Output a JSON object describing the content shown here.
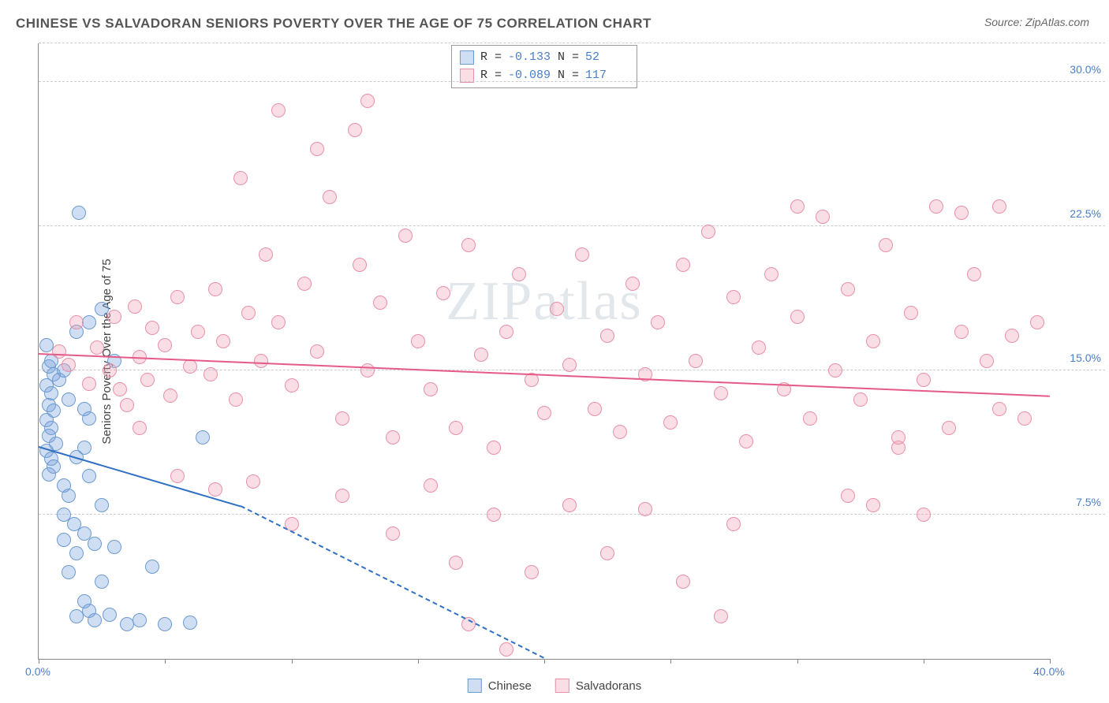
{
  "title": "CHINESE VS SALVADORAN SENIORS POVERTY OVER THE AGE OF 75 CORRELATION CHART",
  "source": "Source: ZipAtlas.com",
  "y_axis_label": "Seniors Poverty Over the Age of 75",
  "watermark": "ZIPatlas",
  "chart": {
    "type": "scatter",
    "xlim": [
      0,
      40
    ],
    "ylim": [
      0,
      32
    ],
    "x_ticks": [
      0,
      5,
      10,
      15,
      20,
      25,
      30,
      35,
      40
    ],
    "x_tick_labels": {
      "0": "0.0%",
      "40": "40.0%"
    },
    "y_ticks": [
      7.5,
      15.0,
      22.5,
      30.0
    ],
    "y_tick_labels": [
      "7.5%",
      "15.0%",
      "22.5%",
      "30.0%"
    ],
    "background_color": "#ffffff",
    "grid_color": "#cccccc",
    "marker_radius": 9,
    "marker_border_width": 1.5
  },
  "series": [
    {
      "name": "Chinese",
      "fill": "rgba(120,160,220,0.35)",
      "stroke": "#6b9bd1",
      "line_color": "#2f6fc4",
      "R": "-0.133",
      "N": "52",
      "trend": {
        "x1": 0,
        "y1": 11.0,
        "x2_solid": 8,
        "y2_solid": 7.9,
        "x2_dash": 20,
        "y2_dash": 0
      },
      "points": [
        [
          0.3,
          16.3
        ],
        [
          0.4,
          15.2
        ],
        [
          0.5,
          15.5
        ],
        [
          0.6,
          14.8
        ],
        [
          0.3,
          14.2
        ],
        [
          0.5,
          13.8
        ],
        [
          0.4,
          13.2
        ],
        [
          0.6,
          12.9
        ],
        [
          0.3,
          12.4
        ],
        [
          0.5,
          12.0
        ],
        [
          0.4,
          11.6
        ],
        [
          0.7,
          11.2
        ],
        [
          0.3,
          10.8
        ],
        [
          0.5,
          10.4
        ],
        [
          0.6,
          10.0
        ],
        [
          0.4,
          9.6
        ],
        [
          0.8,
          14.5
        ],
        [
          1.0,
          15.0
        ],
        [
          1.2,
          13.5
        ],
        [
          1.5,
          17.0
        ],
        [
          1.6,
          23.2
        ],
        [
          1.8,
          11.0
        ],
        [
          1.0,
          9.0
        ],
        [
          1.2,
          8.5
        ],
        [
          1.5,
          10.5
        ],
        [
          1.0,
          7.5
        ],
        [
          1.4,
          7.0
        ],
        [
          1.8,
          6.5
        ],
        [
          1.0,
          6.2
        ],
        [
          1.5,
          5.5
        ],
        [
          2.0,
          9.5
        ],
        [
          2.2,
          6.0
        ],
        [
          2.5,
          8.0
        ],
        [
          1.2,
          4.5
        ],
        [
          1.8,
          3.0
        ],
        [
          2.0,
          2.5
        ],
        [
          2.5,
          4.0
        ],
        [
          3.0,
          5.8
        ],
        [
          1.5,
          2.2
        ],
        [
          2.2,
          2.0
        ],
        [
          2.8,
          2.3
        ],
        [
          3.5,
          1.8
        ],
        [
          4.0,
          2.0
        ],
        [
          4.5,
          4.8
        ],
        [
          5.0,
          1.8
        ],
        [
          2.0,
          17.5
        ],
        [
          2.5,
          18.2
        ],
        [
          6.0,
          1.9
        ],
        [
          6.5,
          11.5
        ],
        [
          2.0,
          12.5
        ],
        [
          1.8,
          13.0
        ],
        [
          3.0,
          15.5
        ]
      ]
    },
    {
      "name": "Salvadorans",
      "fill": "rgba(240,160,180,0.35)",
      "stroke": "#e890a8",
      "line_color": "#e65a8a",
      "R": "-0.089",
      "N": "117",
      "trend": {
        "x1": 0,
        "y1": 15.8,
        "x2_solid": 40,
        "y2_solid": 13.6,
        "x2_dash": 40,
        "y2_dash": 13.6
      },
      "points": [
        [
          0.8,
          16.0
        ],
        [
          1.2,
          15.3
        ],
        [
          1.5,
          17.5
        ],
        [
          2.0,
          14.3
        ],
        [
          2.3,
          16.2
        ],
        [
          2.8,
          15.0
        ],
        [
          3.0,
          17.8
        ],
        [
          3.2,
          14.0
        ],
        [
          3.5,
          13.2
        ],
        [
          3.8,
          18.3
        ],
        [
          4.0,
          15.7
        ],
        [
          4.3,
          14.5
        ],
        [
          4.5,
          17.2
        ],
        [
          5.0,
          16.3
        ],
        [
          5.2,
          13.7
        ],
        [
          5.5,
          18.8
        ],
        [
          6.0,
          15.2
        ],
        [
          6.3,
          17.0
        ],
        [
          6.8,
          14.8
        ],
        [
          7.0,
          19.2
        ],
        [
          7.3,
          16.5
        ],
        [
          7.8,
          13.5
        ],
        [
          8.0,
          25.0
        ],
        [
          8.3,
          18.0
        ],
        [
          8.8,
          15.5
        ],
        [
          9.0,
          21.0
        ],
        [
          9.5,
          17.5
        ],
        [
          10.0,
          14.2
        ],
        [
          10.5,
          19.5
        ],
        [
          11.0,
          16.0
        ],
        [
          11.5,
          24.0
        ],
        [
          12.0,
          12.5
        ],
        [
          12.5,
          27.5
        ],
        [
          12.7,
          20.5
        ],
        [
          13.0,
          15.0
        ],
        [
          13.5,
          18.5
        ],
        [
          14.0,
          11.5
        ],
        [
          14.5,
          22.0
        ],
        [
          15.0,
          16.5
        ],
        [
          15.5,
          14.0
        ],
        [
          16.0,
          19.0
        ],
        [
          16.5,
          12.0
        ],
        [
          17.0,
          21.5
        ],
        [
          17.5,
          15.8
        ],
        [
          18.0,
          11.0
        ],
        [
          18.5,
          17.0
        ],
        [
          19.0,
          20.0
        ],
        [
          19.5,
          14.5
        ],
        [
          20.0,
          12.8
        ],
        [
          20.5,
          18.2
        ],
        [
          21.0,
          15.3
        ],
        [
          21.5,
          21.0
        ],
        [
          22.0,
          13.0
        ],
        [
          22.5,
          16.8
        ],
        [
          23.0,
          11.8
        ],
        [
          23.5,
          19.5
        ],
        [
          24.0,
          14.8
        ],
        [
          24.5,
          17.5
        ],
        [
          25.0,
          12.3
        ],
        [
          25.5,
          20.5
        ],
        [
          26.0,
          15.5
        ],
        [
          26.5,
          22.2
        ],
        [
          27.0,
          13.8
        ],
        [
          27.5,
          18.8
        ],
        [
          28.0,
          11.3
        ],
        [
          28.5,
          16.2
        ],
        [
          29.0,
          20.0
        ],
        [
          29.5,
          14.0
        ],
        [
          30.0,
          17.8
        ],
        [
          30.5,
          12.5
        ],
        [
          31.0,
          23.0
        ],
        [
          31.5,
          15.0
        ],
        [
          32.0,
          19.2
        ],
        [
          32.5,
          13.5
        ],
        [
          33.0,
          16.5
        ],
        [
          33.5,
          21.5
        ],
        [
          34.0,
          11.0
        ],
        [
          34.5,
          18.0
        ],
        [
          35.0,
          14.5
        ],
        [
          35.5,
          23.5
        ],
        [
          36.0,
          12.0
        ],
        [
          36.5,
          17.0
        ],
        [
          37.0,
          20.0
        ],
        [
          37.5,
          15.5
        ],
        [
          38.0,
          13.0
        ],
        [
          38.5,
          16.8
        ],
        [
          39.0,
          12.5
        ],
        [
          39.5,
          17.5
        ],
        [
          13.0,
          29.0
        ],
        [
          9.5,
          28.5
        ],
        [
          11.0,
          26.5
        ],
        [
          4.0,
          12.0
        ],
        [
          5.5,
          9.5
        ],
        [
          7.0,
          8.8
        ],
        [
          8.5,
          9.2
        ],
        [
          10.0,
          7.0
        ],
        [
          12.0,
          8.5
        ],
        [
          14.0,
          6.5
        ],
        [
          15.5,
          9.0
        ],
        [
          16.5,
          5.0
        ],
        [
          18.0,
          7.5
        ],
        [
          19.5,
          4.5
        ],
        [
          17.0,
          1.8
        ],
        [
          18.5,
          0.5
        ],
        [
          21.0,
          8.0
        ],
        [
          22.5,
          5.5
        ],
        [
          24.0,
          7.8
        ],
        [
          25.5,
          4.0
        ],
        [
          27.0,
          2.2
        ],
        [
          30.0,
          23.5
        ],
        [
          32.0,
          8.5
        ],
        [
          34.0,
          11.5
        ],
        [
          33.0,
          8.0
        ],
        [
          35.0,
          7.5
        ],
        [
          36.5,
          23.2
        ],
        [
          38.0,
          23.5
        ],
        [
          27.5,
          7.0
        ]
      ]
    }
  ],
  "legend_labels": {
    "chinese": "Chinese",
    "salvadorans": "Salvadorans"
  }
}
